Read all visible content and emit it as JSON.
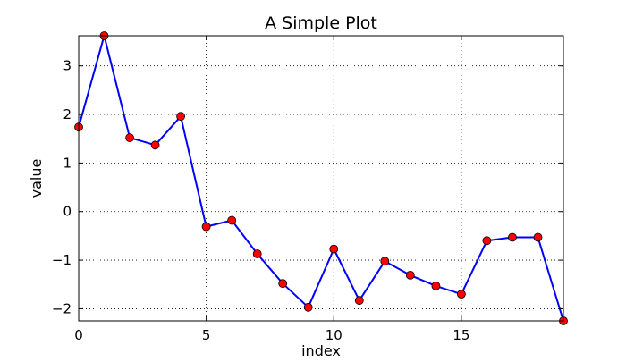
{
  "chart_data": {
    "type": "line",
    "title": "A Simple Plot",
    "xlabel": "index",
    "ylabel": "value",
    "xlim": [
      0,
      19
    ],
    "ylim": [
      -2.25,
      3.62
    ],
    "xticks": [
      0,
      5,
      10,
      15
    ],
    "xtick_labels": [
      "0",
      "5",
      "10",
      "15"
    ],
    "yticks": [
      -2,
      -1,
      0,
      1,
      2,
      3
    ],
    "ytick_labels": [
      "−2",
      "−1",
      "0",
      "1",
      "2",
      "3"
    ],
    "grid": true,
    "legend": "none",
    "series": [
      {
        "color": "#0000ff",
        "marker_color": "#ff0000",
        "marker": "circle",
        "x": [
          0,
          1,
          2,
          3,
          4,
          5,
          6,
          7,
          8,
          9,
          10,
          11,
          12,
          13,
          14,
          15,
          16,
          17,
          18,
          19
        ],
        "values": [
          1.74,
          3.62,
          1.52,
          1.37,
          1.96,
          -0.31,
          -0.18,
          -0.87,
          -1.48,
          -1.97,
          -0.77,
          -1.83,
          -1.02,
          -1.31,
          -1.53,
          -1.7,
          -0.6,
          -0.53,
          -0.53,
          -2.25
        ]
      }
    ]
  }
}
